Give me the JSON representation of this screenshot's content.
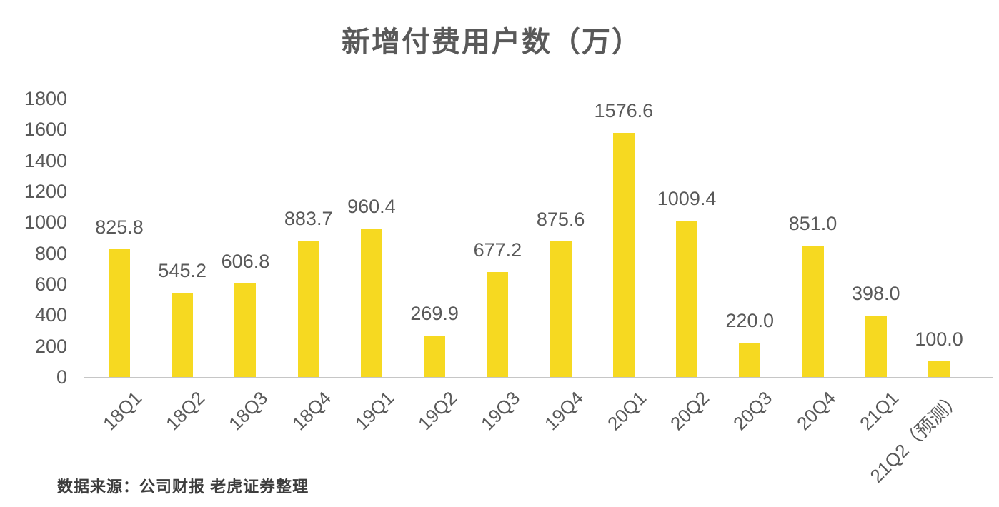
{
  "title": "新增付费用户数（万）",
  "source_note": "数据来源：公司财报 老虎证券整理",
  "colors": {
    "bar": "#f6d921",
    "text": "#595959",
    "axis_line": "#c6c6c6",
    "source_text": "#3d3d3d",
    "background": "#ffffff"
  },
  "chart_data": {
    "type": "bar",
    "title": "新增付费用户数（万）",
    "categories": [
      "18Q1",
      "18Q2",
      "18Q3",
      "18Q4",
      "19Q1",
      "19Q2",
      "19Q3",
      "19Q4",
      "20Q1",
      "20Q2",
      "20Q3",
      "20Q4",
      "21Q1",
      "21Q2（预测）"
    ],
    "values": [
      825.8,
      545.2,
      606.8,
      883.7,
      960.4,
      269.9,
      677.2,
      875.6,
      1576.6,
      1009.4,
      220.0,
      851.0,
      398.0,
      100.0
    ],
    "value_labels": [
      "825.8",
      "545.2",
      "606.8",
      "883.7",
      "960.4",
      "269.9",
      "677.2",
      "875.6",
      "1576.6",
      "1009.4",
      "220.0",
      "851.0",
      "398.0",
      "100.0"
    ],
    "xlabel": "",
    "ylabel": "",
    "ylim": [
      0,
      1800
    ],
    "ytick_step": 200,
    "ytick_labels": [
      "0",
      "200",
      "400",
      "600",
      "800",
      "1000",
      "1200",
      "1400",
      "1600",
      "1800"
    ],
    "grid": false,
    "legend": "none",
    "bar_color": "#f6d921",
    "source": "数据来源：公司财报 老虎证券整理"
  }
}
